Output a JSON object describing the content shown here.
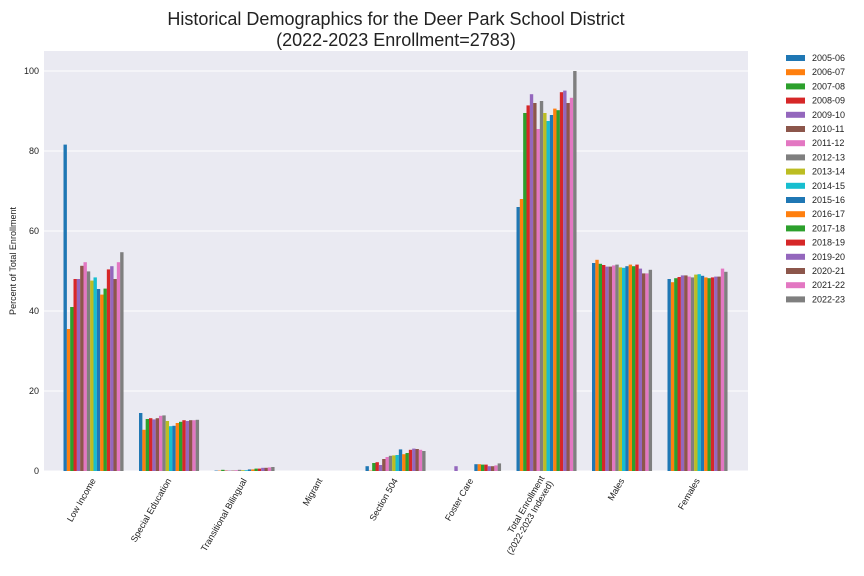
{
  "chart_data": {
    "type": "bar",
    "title": "Historical Demographics for the Deer Park School District",
    "subtitle": "(2022-2023 Enrollment=2783)",
    "xlabel": "",
    "ylabel": "Percent of Total Enrollment",
    "ylim": [
      0,
      105
    ],
    "yticks": [
      0,
      20,
      40,
      60,
      80,
      100
    ],
    "grid": true,
    "legend_position": "outside-right",
    "categories": [
      [
        "Low Income"
      ],
      [
        "Special Education"
      ],
      [
        "Transitional Bilingual"
      ],
      [
        "Migrant"
      ],
      [
        "Section 504"
      ],
      [
        "Foster Care"
      ],
      [
        "Total Enrollment",
        "(2022-2023 Indexed)"
      ],
      [
        "Males"
      ],
      [
        "Females"
      ]
    ],
    "series": [
      {
        "name": "2005-06",
        "color": "#1f77b4",
        "values": [
          81.6,
          14.5,
          0.1,
          0,
          1.2,
          0,
          66.0,
          52.0,
          48.0
        ]
      },
      {
        "name": "2006-07",
        "color": "#ff7f0e",
        "values": [
          35.5,
          10.3,
          0.1,
          0,
          0.1,
          0,
          68.0,
          52.8,
          47.2
        ]
      },
      {
        "name": "2007-08",
        "color": "#2ca02c",
        "values": [
          41.0,
          13.0,
          0.3,
          0,
          2.0,
          0,
          89.5,
          51.8,
          48.2
        ]
      },
      {
        "name": "2008-09",
        "color": "#d62728",
        "values": [
          48.0,
          13.2,
          0.1,
          0,
          2.2,
          0,
          91.4,
          51.5,
          48.5
        ]
      },
      {
        "name": "2009-10",
        "color": "#9467bd",
        "values": [
          48.0,
          12.9,
          0.1,
          0,
          1.5,
          1.2,
          94.2,
          51.1,
          48.9
        ]
      },
      {
        "name": "2010-11",
        "color": "#8c564b",
        "values": [
          51.3,
          13.2,
          0.1,
          0,
          3.0,
          0,
          92.0,
          51.1,
          48.9
        ]
      },
      {
        "name": "2011-12",
        "color": "#e377c2",
        "values": [
          52.2,
          13.8,
          0.2,
          0,
          3.5,
          0,
          85.5,
          51.4,
          48.6
        ]
      },
      {
        "name": "2012-13",
        "color": "#7f7f7f",
        "values": [
          49.9,
          13.9,
          0.3,
          0,
          3.8,
          0,
          92.5,
          51.6,
          48.4
        ]
      },
      {
        "name": "2013-14",
        "color": "#bcbd22",
        "values": [
          47.6,
          12.5,
          0.2,
          0,
          3.9,
          0,
          89.5,
          50.9,
          49.1
        ]
      },
      {
        "name": "2014-15",
        "color": "#17becf",
        "values": [
          48.4,
          11.2,
          0.2,
          0,
          4.0,
          0,
          87.5,
          50.8,
          49.2
        ]
      },
      {
        "name": "2015-16",
        "color": "#1f77b4",
        "values": [
          45.5,
          11.3,
          0.4,
          0,
          5.4,
          1.7,
          89.0,
          51.2,
          48.8
        ]
      },
      {
        "name": "2016-17",
        "color": "#ff7f0e",
        "values": [
          44.1,
          12.0,
          0.4,
          0,
          4.2,
          1.7,
          90.6,
          51.6,
          48.4
        ]
      },
      {
        "name": "2017-18",
        "color": "#2ca02c",
        "values": [
          45.6,
          12.3,
          0.6,
          0,
          4.5,
          1.6,
          90.2,
          51.2,
          48.2
        ]
      },
      {
        "name": "2018-19",
        "color": "#d62728",
        "values": [
          50.4,
          12.7,
          0.6,
          0,
          5.3,
          1.6,
          94.7,
          51.6,
          48.4
        ]
      },
      {
        "name": "2019-20",
        "color": "#9467bd",
        "values": [
          51.2,
          12.5,
          0.8,
          0,
          5.6,
          1.2,
          95.1,
          50.6,
          48.6
        ]
      },
      {
        "name": "2020-21",
        "color": "#8c564b",
        "values": [
          48.0,
          12.7,
          0.8,
          0,
          5.5,
          1.2,
          92.0,
          49.4,
          48.6
        ]
      },
      {
        "name": "2021-22",
        "color": "#e377c2",
        "values": [
          52.2,
          12.7,
          0.9,
          0,
          5.3,
          1.4,
          93.3,
          49.4,
          50.6
        ]
      },
      {
        "name": "2022-23",
        "color": "#7f7f7f",
        "values": [
          54.7,
          12.8,
          1.0,
          0,
          5.0,
          1.9,
          100.0,
          50.3,
          49.8
        ]
      }
    ]
  }
}
